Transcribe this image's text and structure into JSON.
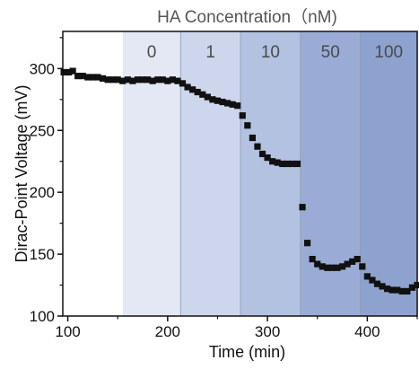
{
  "chart_data": {
    "type": "scatter",
    "title": "HA Concentration（nM)",
    "xlabel": "Time (min)",
    "ylabel": "Dirac-Point Voltage (mV)",
    "xlim": [
      95,
      450
    ],
    "ylim": [
      100,
      330
    ],
    "x_ticks": [
      100,
      200,
      300,
      400
    ],
    "y_ticks": [
      100,
      150,
      200,
      250,
      300
    ],
    "grid": false,
    "marker": "square",
    "marker_color": "#111111",
    "concentration_bands": [
      {
        "label": "0",
        "x_start": 155,
        "x_end": 213,
        "color": "#e3e8f4"
      },
      {
        "label": "1",
        "x_start": 213,
        "x_end": 273,
        "color": "#cdd6ec"
      },
      {
        "label": "10",
        "x_start": 273,
        "x_end": 333,
        "color": "#b4c2e2"
      },
      {
        "label": "50",
        "x_start": 333,
        "x_end": 393,
        "color": "#9aacd6"
      },
      {
        "label": "100",
        "x_start": 393,
        "x_end": 450,
        "color": "#8ea2d0"
      }
    ],
    "series": [
      {
        "x": [
          96,
          101,
          105,
          110,
          115,
          120,
          125,
          130,
          135,
          140,
          145,
          150,
          155,
          160,
          165,
          170,
          175,
          180,
          185,
          190,
          195,
          200,
          205,
          210,
          215,
          220,
          225,
          230,
          235,
          240,
          245,
          250,
          255,
          260,
          265,
          270,
          275,
          280,
          285,
          290,
          295,
          300,
          305,
          310,
          315,
          320,
          325,
          330,
          335,
          340,
          345,
          350,
          355,
          360,
          365,
          370,
          375,
          380,
          385,
          390,
          395,
          400,
          405,
          410,
          415,
          420,
          425,
          430,
          435,
          440,
          445,
          450
        ],
        "y": [
          297,
          297,
          298,
          294,
          294,
          293,
          293,
          293,
          292,
          291,
          291,
          291,
          290,
          291,
          290,
          291,
          291,
          291,
          290,
          291,
          291,
          290,
          291,
          290,
          288,
          285,
          283,
          281,
          279,
          277,
          275,
          274,
          273,
          272,
          271,
          270,
          262,
          254,
          244,
          237,
          231,
          228,
          225,
          224,
          223,
          223,
          223,
          223,
          188,
          159,
          146,
          142,
          140,
          139,
          139,
          139,
          140,
          142,
          144,
          146,
          140,
          132,
          129,
          126,
          124,
          122,
          121,
          121,
          120,
          120,
          123,
          125
        ]
      }
    ]
  }
}
